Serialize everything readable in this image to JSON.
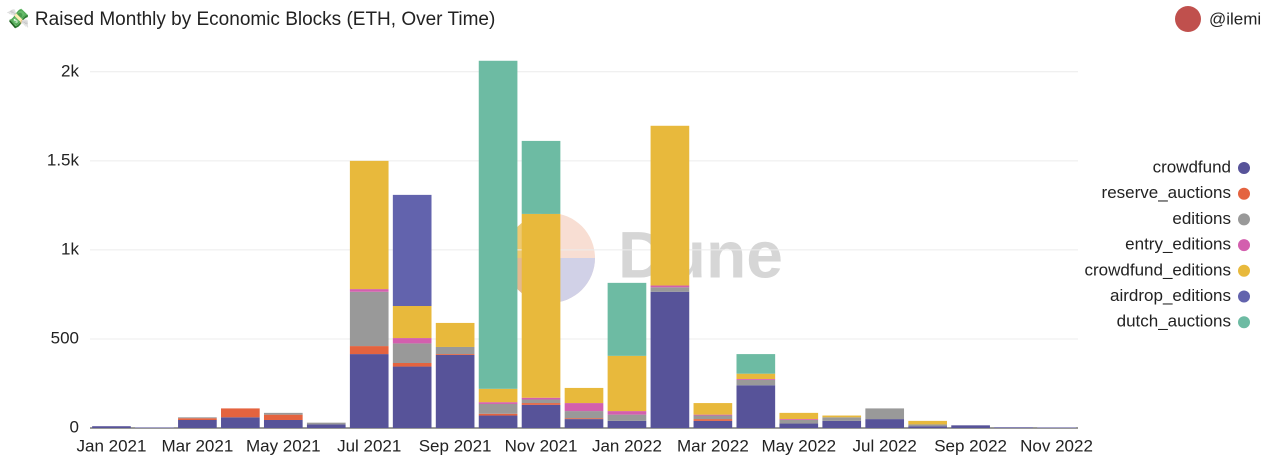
{
  "header": {
    "title": "💸 Raised Monthly by Economic Blocks (ETH, Over Time)",
    "author": "@ilemi"
  },
  "watermark": "Dune",
  "chart_data": {
    "type": "stacked-bar",
    "categories": [
      "Jan 2021",
      null,
      "Mar 2021",
      null,
      "May 2021",
      null,
      "Jul 2021",
      null,
      "Sep 2021",
      null,
      "Nov 2021",
      null,
      "Jan 2022",
      null,
      "Mar 2022",
      null,
      "May 2022",
      null,
      "Jul 2022",
      null,
      "Sep 2022",
      null,
      "Nov 2022"
    ],
    "series": [
      {
        "name": "crowdfund",
        "color": "#575399",
        "values": [
          10,
          3,
          45,
          60,
          45,
          20,
          415,
          345,
          410,
          70,
          130,
          50,
          40,
          765,
          40,
          240,
          25,
          40,
          50,
          10,
          15,
          4,
          3
        ]
      },
      {
        "name": "reserve_auctions",
        "color": "#e4633f",
        "values": [
          0,
          0,
          10,
          50,
          30,
          0,
          45,
          20,
          5,
          10,
          10,
          5,
          0,
          0,
          10,
          0,
          0,
          0,
          0,
          0,
          0,
          0,
          0
        ]
      },
      {
        "name": "editions",
        "color": "#999999",
        "values": [
          0,
          0,
          5,
          0,
          10,
          10,
          305,
          110,
          40,
          55,
          20,
          40,
          35,
          25,
          20,
          30,
          20,
          20,
          60,
          10,
          0,
          0,
          0
        ]
      },
      {
        "name": "entry_editions",
        "color": "#d35fae",
        "values": [
          0,
          0,
          0,
          0,
          0,
          0,
          15,
          30,
          0,
          10,
          10,
          45,
          20,
          10,
          5,
          5,
          5,
          0,
          0,
          0,
          0,
          0,
          0
        ]
      },
      {
        "name": "crowdfund_editions",
        "color": "#e8b93c",
        "values": [
          0,
          0,
          0,
          0,
          0,
          0,
          720,
          180,
          135,
          75,
          1032,
          85,
          310,
          897,
          65,
          30,
          35,
          10,
          0,
          20,
          0,
          0,
          0
        ]
      },
      {
        "name": "airdrop_editions",
        "color": "#6263ad",
        "values": [
          0,
          0,
          0,
          0,
          0,
          0,
          0,
          624,
          0,
          0,
          0,
          0,
          0,
          0,
          0,
          0,
          0,
          0,
          0,
          0,
          0,
          0,
          0
        ]
      },
      {
        "name": "dutch_auctions",
        "color": "#6dbba3",
        "values": [
          0,
          0,
          0,
          0,
          0,
          0,
          0,
          0,
          0,
          1842,
          410,
          0,
          410,
          0,
          0,
          110,
          0,
          0,
          0,
          0,
          0,
          0,
          0
        ]
      }
    ],
    "ylim": [
      0,
      2100
    ],
    "yticks": [
      0,
      500,
      {
        "value": 1000,
        "label": "1k"
      },
      {
        "value": 1500,
        "label": "1.5k"
      },
      {
        "value": 2000,
        "label": "2k"
      }
    ],
    "grid": true,
    "legend": "right"
  }
}
